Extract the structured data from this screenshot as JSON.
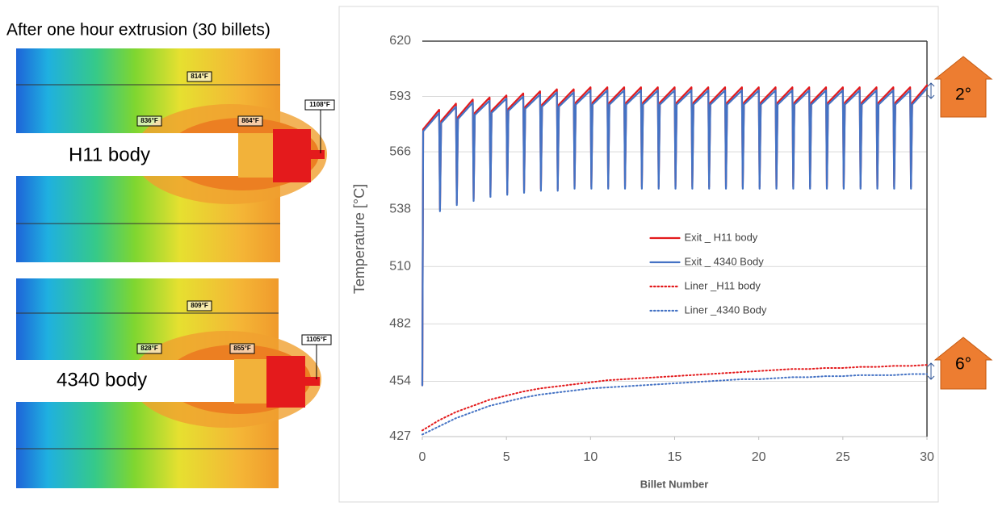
{
  "heading": "After one hour extrusion (30 billets)",
  "panels": [
    {
      "label": "H11 body",
      "temps": [
        "814°F",
        "836°F",
        "864°F",
        "1108°F"
      ]
    },
    {
      "label": "4340 body",
      "temps": [
        "809°F",
        "828°F",
        "855°F",
        "1105°F"
      ]
    }
  ],
  "chart_data": {
    "type": "line",
    "xlabel": "Billet Number",
    "ylabel": "Temperature [°C]",
    "xlim": [
      0,
      30
    ],
    "xticks": [
      0,
      5,
      10,
      15,
      20,
      25,
      30
    ],
    "ylim": [
      427,
      620
    ],
    "yticks": [
      427,
      454,
      482,
      510,
      538,
      566,
      593,
      620
    ],
    "grid": true,
    "legend": "center",
    "annotations": [
      "2°",
      "6°"
    ],
    "series": [
      {
        "name": "Exit _ H11 body",
        "color": "#e31a1c",
        "line_style": "solid",
        "x": [
          0,
          0.05,
          1,
          1.05,
          1.12,
          2,
          2.05,
          2.12,
          3,
          3.05,
          3.12,
          4,
          4.05,
          4.12,
          5,
          5.05,
          5.12,
          6,
          6.05,
          6.12,
          7,
          7.05,
          7.12,
          8,
          8.05,
          8.12,
          9,
          9.05,
          9.12,
          10,
          10.05,
          10.12,
          11,
          11.05,
          11.12,
          12,
          12.05,
          12.12,
          13,
          13.05,
          13.12,
          14,
          14.05,
          14.12,
          15,
          15.05,
          15.12,
          16,
          16.05,
          16.12,
          17,
          17.05,
          17.12,
          18,
          18.05,
          18.12,
          19,
          19.05,
          19.12,
          20,
          20.05,
          20.12,
          21,
          21.05,
          21.12,
          22,
          22.05,
          22.12,
          23,
          23.05,
          23.12,
          24,
          24.05,
          24.12,
          25,
          25.05,
          25.12,
          26,
          26.05,
          26.12,
          27,
          27.05,
          27.12,
          28,
          28.05,
          28.12,
          29,
          29.05,
          29.12,
          30
        ],
        "values": [
          452,
          577,
          586.5,
          538,
          581,
          589.5,
          541,
          583,
          591.5,
          543,
          585,
          592.5,
          545,
          586,
          593.5,
          546,
          587,
          594.5,
          547,
          588,
          595.5,
          548,
          589,
          596.5,
          548,
          589,
          596.5,
          549,
          590,
          597.5,
          549,
          590,
          597.5,
          549,
          590,
          597.5,
          549,
          590,
          597.5,
          549,
          590,
          597.5,
          549,
          590,
          597.5,
          549,
          590,
          597.5,
          549,
          590,
          597.5,
          549,
          590,
          597.5,
          549,
          590,
          597.5,
          549,
          590,
          597.5,
          549,
          590,
          597.5,
          549,
          590,
          597.5,
          549,
          590,
          597.5,
          549,
          590,
          597.5,
          549,
          590,
          597.5,
          549,
          590,
          597.5,
          549,
          590,
          597.5,
          549,
          590,
          597.5,
          549,
          590,
          597.5,
          549,
          590,
          598.5
        ]
      },
      {
        "name": "Exit _ 4340 Body",
        "color": "#4472c4",
        "line_style": "solid",
        "x": [
          0,
          0.05,
          1,
          1.05,
          1.12,
          2,
          2.05,
          2.12,
          3,
          3.05,
          3.12,
          4,
          4.05,
          4.12,
          5,
          5.05,
          5.12,
          6,
          6.05,
          6.12,
          7,
          7.05,
          7.12,
          8,
          8.05,
          8.12,
          9,
          9.05,
          9.12,
          10,
          10.05,
          10.12,
          11,
          11.05,
          11.12,
          12,
          12.05,
          12.12,
          13,
          13.05,
          13.12,
          14,
          14.05,
          14.12,
          15,
          15.05,
          15.12,
          16,
          16.05,
          16.12,
          17,
          17.05,
          17.12,
          18,
          18.05,
          18.12,
          19,
          19.05,
          19.12,
          20,
          20.05,
          20.12,
          21,
          21.05,
          21.12,
          22,
          22.05,
          22.12,
          23,
          23.05,
          23.12,
          24,
          24.05,
          24.12,
          25,
          25.05,
          25.12,
          26,
          26.05,
          26.12,
          27,
          27.05,
          27.12,
          28,
          28.05,
          28.12,
          29,
          29.05,
          29.12,
          30
        ],
        "values": [
          452,
          576,
          585,
          537,
          580,
          588,
          540,
          582,
          590,
          542,
          584,
          591,
          544,
          585,
          592,
          545,
          586,
          593,
          546,
          587,
          594,
          547,
          588,
          595,
          547,
          588,
          595,
          548,
          589,
          596,
          548,
          589,
          596,
          548,
          589,
          596,
          548,
          589,
          596,
          548,
          589,
          596,
          548,
          589,
          596,
          548,
          589,
          596,
          548,
          589,
          596,
          548,
          589,
          596,
          548,
          589,
          596,
          548,
          589,
          596,
          548,
          589,
          596,
          548,
          589,
          596,
          548,
          589,
          596,
          548,
          589,
          596,
          548,
          589,
          596,
          548,
          589,
          596,
          548,
          589,
          596,
          548,
          589,
          596,
          548,
          589,
          596,
          548,
          589,
          597
        ]
      },
      {
        "name": "Liner _H11 body",
        "color": "#e31a1c",
        "line_style": "dotted",
        "x": [
          0,
          1,
          2,
          3,
          4,
          5,
          6,
          7,
          8,
          9,
          10,
          11,
          12,
          13,
          14,
          15,
          16,
          17,
          18,
          19,
          20,
          21,
          22,
          23,
          24,
          25,
          26,
          27,
          28,
          29,
          30
        ],
        "values": [
          430,
          435,
          439,
          442,
          445,
          447,
          449,
          450.5,
          451.5,
          452.5,
          453.5,
          454.5,
          455,
          455.5,
          456,
          456.5,
          457,
          457.5,
          458,
          458.5,
          459,
          459.5,
          460,
          460,
          460.5,
          460.5,
          461,
          461,
          461.5,
          461.5,
          462
        ]
      },
      {
        "name": "Liner _4340 Body",
        "color": "#4472c4",
        "line_style": "dotted",
        "x": [
          0,
          1,
          2,
          3,
          4,
          5,
          6,
          7,
          8,
          9,
          10,
          11,
          12,
          13,
          14,
          15,
          16,
          17,
          18,
          19,
          20,
          21,
          22,
          23,
          24,
          25,
          26,
          27,
          28,
          29,
          30
        ],
        "values": [
          428,
          432,
          436,
          439,
          442,
          444,
          446,
          447.5,
          448.5,
          449.5,
          450.5,
          451,
          451.5,
          452,
          452.5,
          453,
          453.5,
          454,
          454.5,
          455,
          455,
          455.5,
          456,
          456,
          456.5,
          456.5,
          457,
          457,
          457,
          457.5,
          457.5
        ]
      }
    ]
  }
}
